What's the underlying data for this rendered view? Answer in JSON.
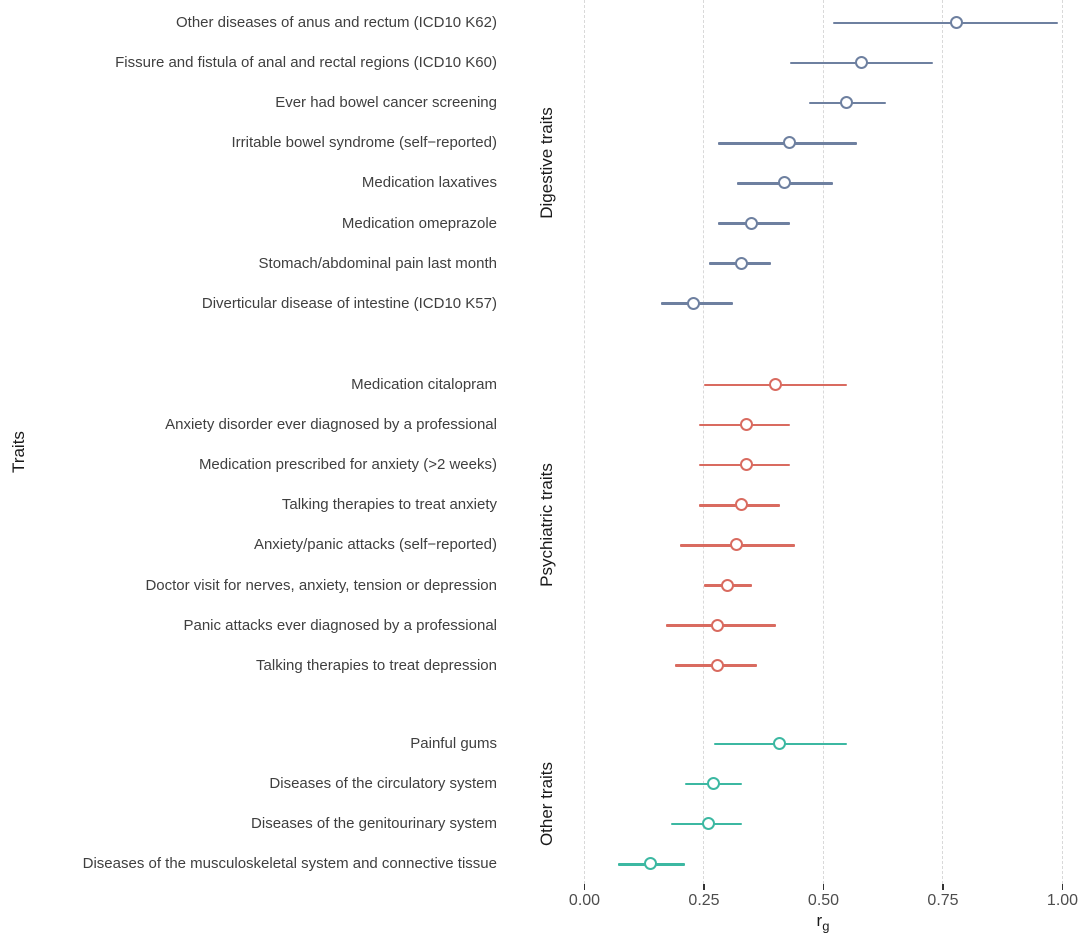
{
  "figure": {
    "y_axis_label": "Traits",
    "x_axis_label_base": "r",
    "x_axis_label_sub": "g"
  },
  "chart_data": {
    "type": "scatter",
    "subtype": "forest-plot-with-confidence-intervals",
    "title": "",
    "xlabel": "rg",
    "ylabel": "Traits",
    "xlim": [
      0,
      1
    ],
    "x_ticks": [
      0,
      0.25,
      0.5,
      0.75,
      1
    ],
    "x_tick_labels": [
      "0.00",
      "0.25",
      "0.50",
      "0.75",
      "1.00"
    ],
    "grid": "vertical dashed gridlines at each x tick",
    "legend": "none",
    "grid_color": "#d9d9d9",
    "groups": [
      {
        "name": "Digestive traits",
        "color": "#6e80a0",
        "items": [
          {
            "label": "Other diseases of anus and rectum (ICD10 K62)",
            "rg": 0.78,
            "ci_low": 0.52,
            "ci_high": 0.99
          },
          {
            "label": "Fissure and fistula of anal and rectal regions (ICD10 K60)",
            "rg": 0.58,
            "ci_low": 0.43,
            "ci_high": 0.73
          },
          {
            "label": "Ever had bowel cancer screening",
            "rg": 0.55,
            "ci_low": 0.47,
            "ci_high": 0.63
          },
          {
            "label": "Irritable bowel syndrome (self−reported)",
            "rg": 0.43,
            "ci_low": 0.28,
            "ci_high": 0.57
          },
          {
            "label": "Medication laxatives",
            "rg": 0.42,
            "ci_low": 0.32,
            "ci_high": 0.52
          },
          {
            "label": "Medication omeprazole",
            "rg": 0.35,
            "ci_low": 0.28,
            "ci_high": 0.43
          },
          {
            "label": "Stomach/abdominal pain last month",
            "rg": 0.33,
            "ci_low": 0.26,
            "ci_high": 0.39
          },
          {
            "label": "Diverticular disease of intestine (ICD10 K57)",
            "rg": 0.23,
            "ci_low": 0.16,
            "ci_high": 0.31
          }
        ]
      },
      {
        "name": "Psychiatric traits",
        "color": "#d96b60",
        "items": [
          {
            "label": "Medication citalopram",
            "rg": 0.4,
            "ci_low": 0.25,
            "ci_high": 0.55
          },
          {
            "label": "Anxiety disorder ever diagnosed by a professional",
            "rg": 0.34,
            "ci_low": 0.24,
            "ci_high": 0.43
          },
          {
            "label": "Medication prescribed for anxiety (>2 weeks)",
            "rg": 0.34,
            "ci_low": 0.24,
            "ci_high": 0.43
          },
          {
            "label": "Talking therapies to treat anxiety",
            "rg": 0.33,
            "ci_low": 0.24,
            "ci_high": 0.41
          },
          {
            "label": "Anxiety/panic attacks (self−reported)",
            "rg": 0.32,
            "ci_low": 0.2,
            "ci_high": 0.44
          },
          {
            "label": "Doctor visit for nerves, anxiety, tension or depression",
            "rg": 0.3,
            "ci_low": 0.25,
            "ci_high": 0.35
          },
          {
            "label": "Panic attacks ever diagnosed by a professional",
            "rg": 0.28,
            "ci_low": 0.17,
            "ci_high": 0.4
          },
          {
            "label": "Talking therapies to treat depression",
            "rg": 0.28,
            "ci_low": 0.19,
            "ci_high": 0.36
          }
        ]
      },
      {
        "name": "Other traits",
        "color": "#3cb8a2",
        "items": [
          {
            "label": "Painful gums",
            "rg": 0.41,
            "ci_low": 0.27,
            "ci_high": 0.55
          },
          {
            "label": "Diseases of the circulatory system",
            "rg": 0.27,
            "ci_low": 0.21,
            "ci_high": 0.33
          },
          {
            "label": "Diseases of the genitourinary system",
            "rg": 0.26,
            "ci_low": 0.18,
            "ci_high": 0.33
          },
          {
            "label": "Diseases of the musculoskeletal system and connective tissue",
            "rg": 0.14,
            "ci_low": 0.07,
            "ci_high": 0.21
          }
        ]
      }
    ]
  }
}
